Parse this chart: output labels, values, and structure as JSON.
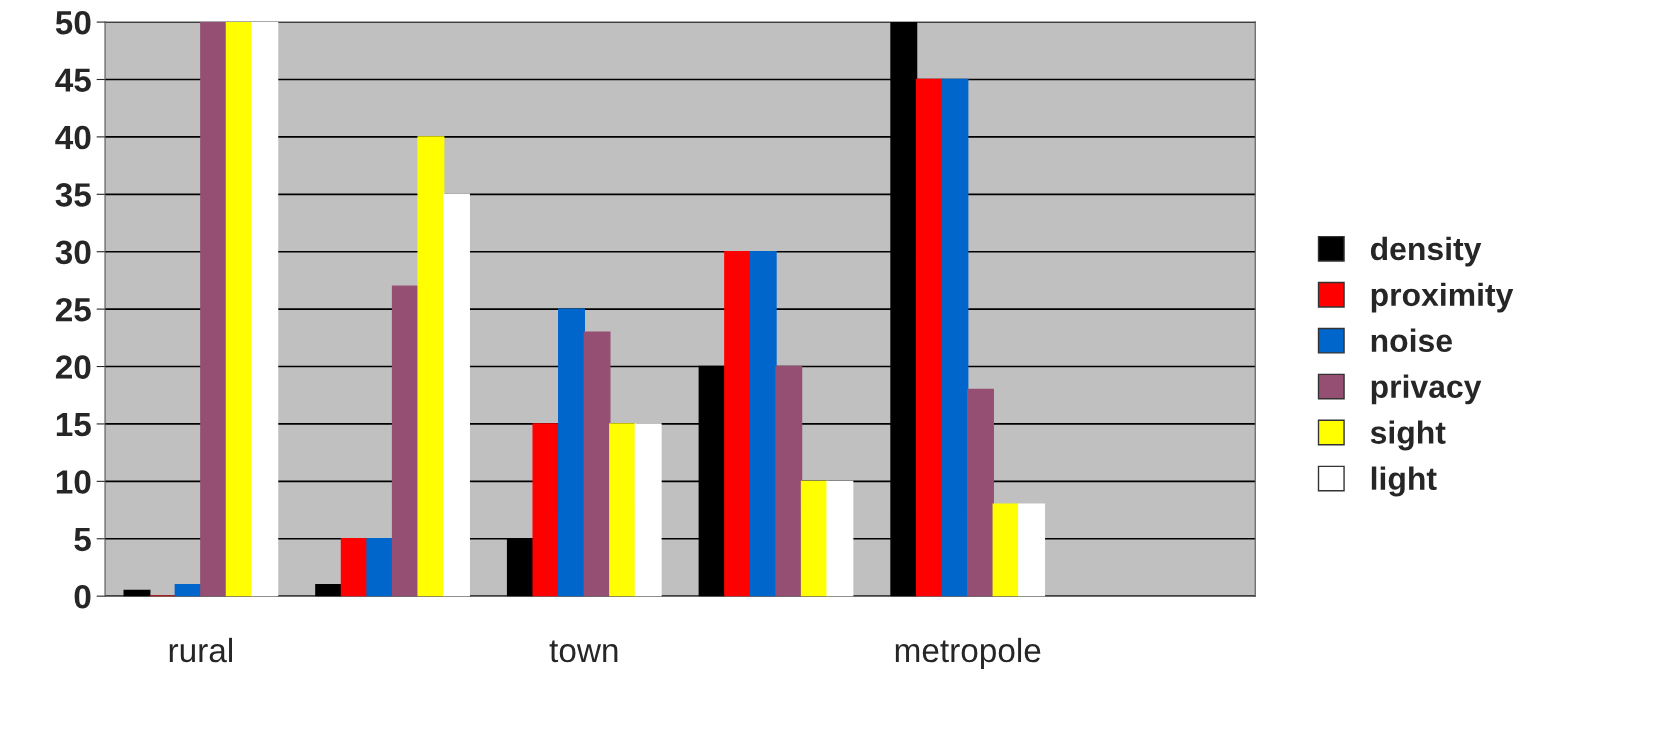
{
  "chart_data": {
    "type": "bar",
    "categories": [
      "rural",
      null,
      "town",
      null,
      "metropole",
      null
    ],
    "series": [
      {
        "name": "density",
        "color": "#000000",
        "values": [
          0.5,
          1,
          5,
          20,
          50,
          null
        ]
      },
      {
        "name": "proximity",
        "color": "#ff0000",
        "values": [
          0,
          5,
          15,
          30,
          45,
          null
        ]
      },
      {
        "name": "noise",
        "color": "#0066cc",
        "values": [
          1,
          5,
          25,
          30,
          45,
          null
        ]
      },
      {
        "name": "privacy",
        "color": "#954f72",
        "values": [
          50,
          27,
          23,
          20,
          18,
          null
        ]
      },
      {
        "name": "sight",
        "color": "#ffff00",
        "values": [
          50,
          40,
          15,
          10,
          8,
          null
        ]
      },
      {
        "name": "light",
        "color": "#ffffff",
        "values": [
          50,
          35,
          15,
          10,
          8,
          null
        ]
      }
    ],
    "ylim": [
      0,
      50
    ],
    "yticks": [
      0,
      5,
      10,
      15,
      20,
      25,
      30,
      35,
      40,
      45,
      50
    ],
    "grid": "y",
    "legend": "right"
  }
}
